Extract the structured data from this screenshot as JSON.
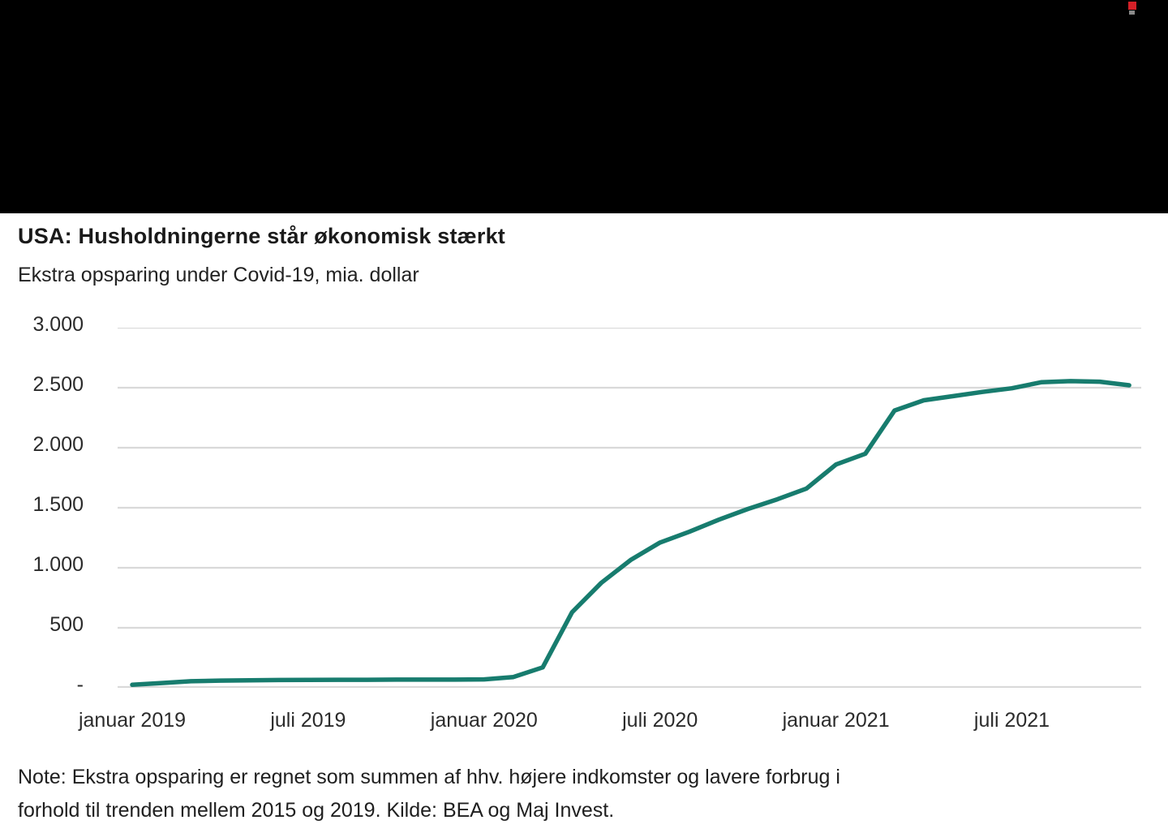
{
  "banner": {
    "background_color": "#000000",
    "logo_red_color": "#d42027"
  },
  "header": {
    "title": "USA: Husholdningerne står økonomisk stærkt",
    "subtitle": "Ekstra opsparing under Covid-19, mia. dollar"
  },
  "chart_data": {
    "type": "line",
    "title": "USA: Husholdningerne står økonomisk stærkt",
    "subtitle": "Ekstra opsparing under Covid-19, mia. dollar",
    "xlabel": "",
    "ylabel": "mia. dollar",
    "x": [
      "jan 2019",
      "feb 2019",
      "mar 2019",
      "apr 2019",
      "maj 2019",
      "jun 2019",
      "jul 2019",
      "aug 2019",
      "sep 2019",
      "okt 2019",
      "nov 2019",
      "dec 2019",
      "jan 2020",
      "feb 2020",
      "mar 2020",
      "apr 2020",
      "maj 2020",
      "jun 2020",
      "jul 2020",
      "aug 2020",
      "sep 2020",
      "okt 2020",
      "nov 2020",
      "dec 2020",
      "jan 2021",
      "feb 2021",
      "mar 2021",
      "apr 2021",
      "maj 2021",
      "jun 2021",
      "jul 2021",
      "aug 2021",
      "sep 2021",
      "okt 2021",
      "nov 2021"
    ],
    "series": [
      {
        "name": "Ekstra opsparing",
        "values": [
          25,
          40,
          55,
          60,
          63,
          65,
          66,
          67,
          67,
          68,
          68,
          68,
          70,
          90,
          170,
          630,
          875,
          1065,
          1210,
          1300,
          1400,
          1490,
          1570,
          1660,
          1860,
          1950,
          2310,
          2395,
          2430,
          2465,
          2495,
          2545,
          2555,
          2550,
          2520
        ]
      }
    ],
    "ylim": [
      0,
      3000
    ],
    "y_ticks": [
      0,
      500,
      1000,
      1500,
      2000,
      2500,
      3000
    ],
    "y_tick_labels": [
      "-",
      "500",
      "1.000",
      "1.500",
      "2.000",
      "2.500",
      "3.000"
    ],
    "x_tick_month_indices": [
      0,
      6,
      12,
      18,
      24,
      30
    ],
    "x_tick_labels": [
      "januar 2019",
      "juli 2019",
      "januar 2020",
      "juli 2020",
      "januar 2021",
      "juli 2021"
    ],
    "grid": true,
    "legend_position": "none",
    "line_color": "#177c6e",
    "grid_color": "#d9d9d9"
  },
  "note": {
    "line1": "Note: Ekstra opsparing er regnet som summen af hhv. højere indkomster og lavere forbrug i",
    "line2": "forhold til trenden mellem 2015 og 2019. Kilde: BEA og Maj Invest."
  }
}
